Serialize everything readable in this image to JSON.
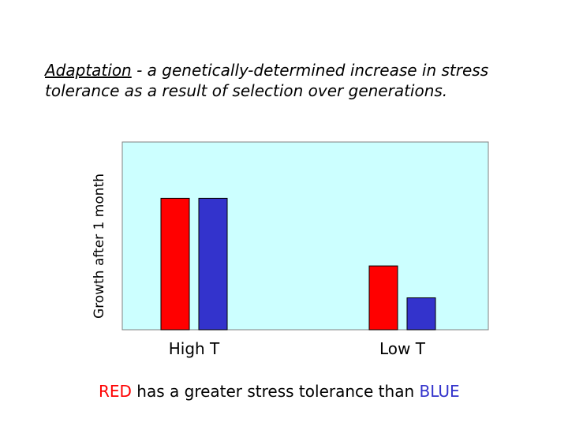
{
  "slide": {
    "heading_term": "Adaptation",
    "heading_rest": " - a genetically-determined increase in stress tolerance as a result of selection over generations.",
    "conclusion": {
      "red_word": "RED",
      "middle": " has a greater stress tolerance than ",
      "blue_word": "BLUE"
    }
  },
  "chart_data": {
    "type": "bar",
    "title": "",
    "xlabel": "",
    "ylabel": "Growth after 1 month",
    "categories": [
      "High T",
      "Low T"
    ],
    "series": [
      {
        "values": [
          70,
          34
        ]
      },
      {
        "values": [
          70,
          17
        ]
      }
    ],
    "ylim": [
      0,
      100
    ],
    "grid": false,
    "colors": {
      "plot_background": "#ccffff",
      "series": [
        "#ff0000",
        "#3333cc"
      ],
      "red_text": "#ff0000",
      "blue_text": "#3333cc"
    }
  }
}
